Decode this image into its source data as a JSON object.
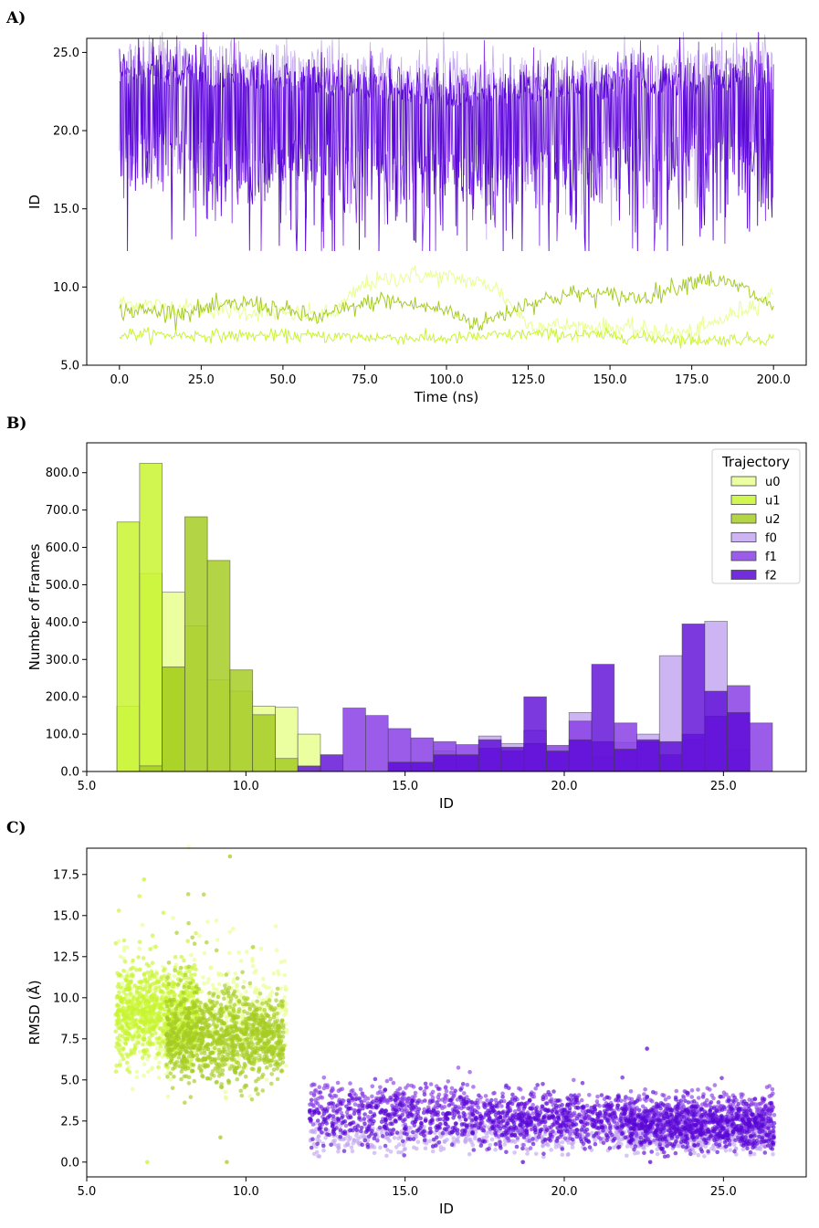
{
  "panels": {
    "a": {
      "letter": "A)"
    },
    "b": {
      "letter": "B)"
    },
    "c": {
      "letter": "C)"
    }
  },
  "colors": {
    "u0": "#e8ff8f",
    "u1": "#c8f530",
    "u2": "#a6cc24",
    "f0": "#c3a8f0",
    "f1": "#8a3fe6",
    "f2": "#5a08d6"
  },
  "chart_data": [
    {
      "type": "line",
      "panel": "A)",
      "title": "",
      "xlabel": "Time (ns)",
      "ylabel": "ID",
      "xlim": [
        -10,
        210
      ],
      "ylim": [
        5,
        25.9
      ],
      "xticks": [
        "0.0",
        "25.0",
        "50.0",
        "75.0",
        "100.0",
        "125.0",
        "150.0",
        "175.0",
        "200.0"
      ],
      "yticks": [
        "5.0",
        "10.0",
        "15.0",
        "20.0",
        "25.0"
      ],
      "series": [
        {
          "name": "u0",
          "mean_trend": [
            [
              0,
              9.0
            ],
            [
              25,
              8.6
            ],
            [
              50,
              8.3
            ],
            [
              65,
              8.2
            ],
            [
              75,
              10.2
            ],
            [
              90,
              10.8
            ],
            [
              105,
              10.5
            ],
            [
              115,
              10.0
            ],
            [
              125,
              7.6
            ],
            [
              150,
              7.4
            ],
            [
              175,
              7.0
            ],
            [
              190,
              8.5
            ],
            [
              200,
              9.5
            ]
          ],
          "band": 0.6
        },
        {
          "name": "u1",
          "mean_trend": [
            [
              0,
              7.0
            ],
            [
              25,
              6.9
            ],
            [
              50,
              6.9
            ],
            [
              75,
              6.8
            ],
            [
              100,
              6.7
            ],
            [
              125,
              7.0
            ],
            [
              150,
              6.9
            ],
            [
              175,
              6.6
            ],
            [
              200,
              6.7
            ]
          ],
          "band": 0.4
        },
        {
          "name": "u2",
          "mean_trend": [
            [
              0,
              8.5
            ],
            [
              20,
              8.4
            ],
            [
              40,
              9.0
            ],
            [
              60,
              8.0
            ],
            [
              80,
              9.2
            ],
            [
              100,
              8.5
            ],
            [
              110,
              7.6
            ],
            [
              125,
              9.0
            ],
            [
              140,
              9.6
            ],
            [
              160,
              9.3
            ],
            [
              178,
              10.6
            ],
            [
              190,
              10.0
            ],
            [
              200,
              8.7
            ]
          ],
          "band": 0.6
        },
        {
          "name": "f0",
          "mean_trend": [
            [
              0,
              22.5
            ],
            [
              50,
              22.0
            ],
            [
              100,
              21.0
            ],
            [
              150,
              21.5
            ],
            [
              200,
              22.5
            ]
          ],
          "band": 2.5
        },
        {
          "name": "f1",
          "mean_trend": [
            [
              0,
              22.0
            ],
            [
              50,
              21.0
            ],
            [
              100,
              20.0
            ],
            [
              150,
              21.0
            ],
            [
              200,
              21.5
            ]
          ],
          "band": 3.0
        },
        {
          "name": "f2",
          "mean_trend": [
            [
              0,
              21.5
            ],
            [
              50,
              21.0
            ],
            [
              100,
              20.0
            ],
            [
              150,
              20.5
            ],
            [
              200,
              21.0
            ]
          ],
          "band": 3.5
        }
      ]
    },
    {
      "type": "bar",
      "panel": "B)",
      "subtype": "overlapping histogram",
      "title": "",
      "xlabel": "ID",
      "ylabel": "Number of Frames",
      "xlim": [
        5.0,
        27.6
      ],
      "ylim": [
        0,
        880
      ],
      "xticks": [
        "5.0",
        "10.0",
        "15.0",
        "20.0",
        "25.0"
      ],
      "yticks": [
        "0.0",
        "100.0",
        "200.0",
        "300.0",
        "400.0",
        "500.0",
        "600.0",
        "700.0",
        "800.0"
      ],
      "legend": {
        "title": "Trajectory",
        "position": "top-right",
        "labels": [
          "u0",
          "u1",
          "u2",
          "f0",
          "f1",
          "f2"
        ]
      },
      "bin_edges": [
        5.95,
        6.66,
        7.37,
        8.08,
        8.79,
        9.5,
        10.21,
        10.92,
        11.63,
        12.34,
        13.05,
        13.76,
        14.47,
        15.18,
        15.89,
        16.6,
        17.31,
        18.02,
        18.73,
        19.44,
        20.15,
        20.86,
        21.57,
        22.28,
        22.99,
        23.7,
        24.41,
        25.12,
        25.83,
        26.54
      ],
      "series": [
        {
          "name": "u0",
          "values": [
            175,
            530,
            480,
            390,
            245,
            215,
            175,
            172,
            100,
            0,
            0,
            0,
            0,
            0,
            0,
            0,
            0,
            0,
            0,
            0,
            0,
            0,
            0,
            0,
            0,
            0,
            0,
            0,
            0
          ]
        },
        {
          "name": "u1",
          "values": [
            668,
            825,
            278,
            0,
            0,
            0,
            0,
            0,
            0,
            0,
            0,
            0,
            0,
            0,
            0,
            0,
            0,
            0,
            0,
            0,
            0,
            0,
            0,
            0,
            0,
            0,
            0,
            0,
            0
          ]
        },
        {
          "name": "u2",
          "values": [
            0,
            15,
            280,
            682,
            565,
            272,
            152,
            35,
            0,
            0,
            0,
            0,
            0,
            0,
            0,
            0,
            0,
            0,
            0,
            0,
            0,
            0,
            0,
            0,
            0,
            0,
            0,
            0,
            0
          ]
        },
        {
          "name": "f0",
          "values": [
            0,
            0,
            0,
            0,
            0,
            0,
            0,
            0,
            0,
            0,
            0,
            0,
            0,
            0,
            55,
            40,
            95,
            75,
            110,
            50,
            158,
            40,
            78,
            100,
            310,
            85,
            402,
            60,
            0
          ]
        },
        {
          "name": "f1",
          "values": [
            0,
            0,
            0,
            0,
            0,
            0,
            0,
            0,
            0,
            0,
            170,
            150,
            115,
            90,
            80,
            72,
            62,
            55,
            75,
            70,
            135,
            80,
            130,
            80,
            45,
            100,
            148,
            230,
            130
          ]
        },
        {
          "name": "f2",
          "values": [
            0,
            0,
            0,
            0,
            0,
            0,
            0,
            0,
            15,
            45,
            0,
            0,
            25,
            25,
            45,
            45,
            85,
            65,
            200,
            55,
            85,
            287,
            60,
            85,
            80,
            395,
            215,
            158,
            0
          ]
        }
      ]
    },
    {
      "type": "scatter",
      "panel": "C)",
      "title": "",
      "xlabel": "ID",
      "ylabel": "RMSD (Å)",
      "xlim": [
        5.0,
        27.6
      ],
      "ylim": [
        -0.9,
        19.1
      ],
      "xticks": [
        "5.0",
        "10.0",
        "15.0",
        "20.0",
        "25.0"
      ],
      "yticks": [
        "0.0",
        "2.5",
        "5.0",
        "7.5",
        "10.0",
        "12.5",
        "15.0",
        "17.5"
      ],
      "clusters": [
        {
          "name": "u0",
          "x_range": [
            6.0,
            11.3
          ],
          "y_center": 8.5,
          "y_spread": 2.2
        },
        {
          "name": "u1",
          "x_range": [
            5.9,
            8.5
          ],
          "y_center": 9.0,
          "y_spread": 1.8
        },
        {
          "name": "u2",
          "x_range": [
            7.5,
            11.2
          ],
          "y_center": 7.6,
          "y_spread": 1.7
        },
        {
          "name": "f0",
          "x_range": [
            12.0,
            26.6
          ],
          "y_center": 1.6,
          "y_spread": 0.7
        },
        {
          "name": "f1",
          "x_range": [
            11.8,
            26.6
          ],
          "y_center": 2.8,
          "y_spread": 1.0
        },
        {
          "name": "f2",
          "x_range": [
            12.0,
            26.6
          ],
          "y_center": 2.6,
          "y_spread": 1.1
        }
      ],
      "outliers": [
        {
          "name": "u1",
          "x": 6.8,
          "y": 17.2
        },
        {
          "name": "u2",
          "x": 9.5,
          "y": 18.6
        },
        {
          "name": "u2",
          "x": 9.2,
          "y": 1.5
        },
        {
          "name": "u1",
          "x": 6.9,
          "y": 0.0
        },
        {
          "name": "u2",
          "x": 9.4,
          "y": 0.0
        },
        {
          "name": "f2",
          "x": 18.7,
          "y": 0.0
        },
        {
          "name": "f2",
          "x": 22.7,
          "y": 0.0
        },
        {
          "name": "f2",
          "x": 22.6,
          "y": 6.9
        }
      ]
    }
  ]
}
